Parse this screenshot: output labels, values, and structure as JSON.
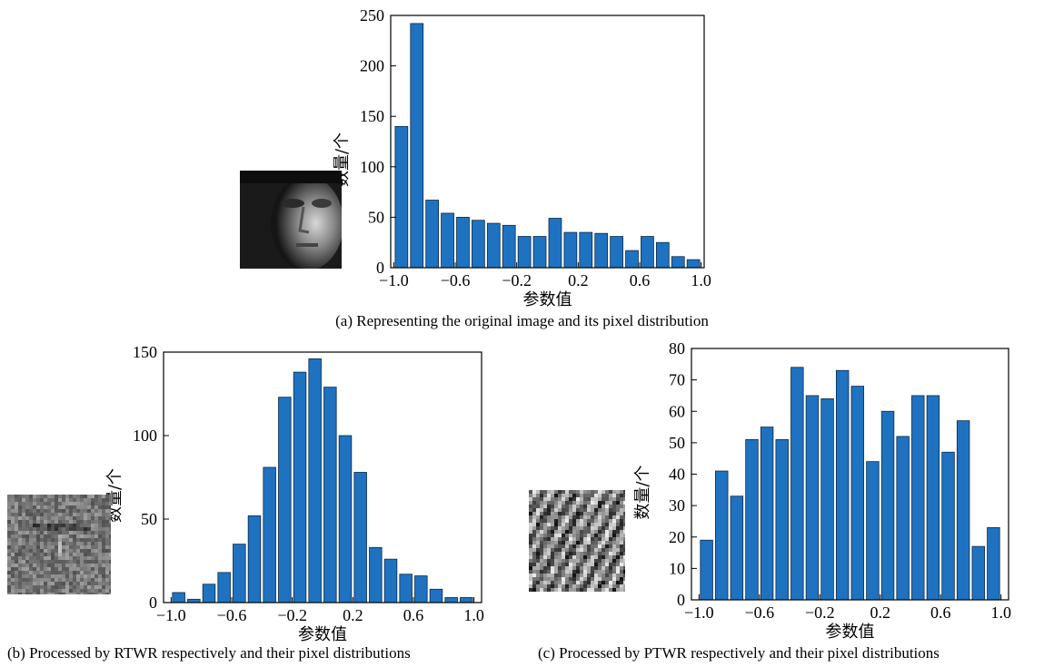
{
  "figure": {
    "captions": {
      "a": "(a) Representing the original image and its pixel distribution",
      "b": "(b) Processed by RTWR respectively and their pixel distributions",
      "c": "(c) Processed by PTWR respectively and their pixel distributions"
    }
  },
  "colors": {
    "bar_fill": "#1f72c0",
    "bar_edge": "#0b2a4a",
    "axis": "#000000"
  },
  "chart_data": [
    {
      "id": "a",
      "type": "bar",
      "title": "",
      "xlabel": "参数值",
      "ylabel": "数量/个",
      "x": [
        -0.95,
        -0.85,
        -0.75,
        -0.65,
        -0.55,
        -0.45,
        -0.35,
        -0.25,
        -0.15,
        -0.05,
        0.05,
        0.15,
        0.25,
        0.35,
        0.45,
        0.55,
        0.65,
        0.75,
        0.85,
        0.95
      ],
      "values": [
        140,
        242,
        67,
        54,
        50,
        47,
        44,
        42,
        31,
        31,
        49,
        35,
        35,
        34,
        31,
        17,
        31,
        25,
        11,
        8
      ],
      "xlim": [
        -1.02,
        1.02
      ],
      "ylim": [
        0,
        250
      ],
      "xticks": [
        -1.0,
        -0.6,
        -0.2,
        0.2,
        0.6,
        1.0
      ],
      "xtick_labels": [
        "−1.0",
        "−0.6",
        "−0.2",
        "0.2",
        "0.6",
        "1.0"
      ],
      "yticks": [
        0,
        50,
        100,
        150,
        200,
        250
      ],
      "ytick_labels": [
        "0",
        "50",
        "100",
        "150",
        "200",
        "250"
      ],
      "grid": false,
      "legend": "none"
    },
    {
      "id": "b",
      "type": "bar",
      "title": "",
      "xlabel": "参数值",
      "ylabel": "数量/个",
      "x": [
        -0.95,
        -0.85,
        -0.75,
        -0.65,
        -0.55,
        -0.45,
        -0.35,
        -0.25,
        -0.15,
        -0.05,
        0.05,
        0.15,
        0.25,
        0.35,
        0.45,
        0.55,
        0.65,
        0.75,
        0.85,
        0.95
      ],
      "values": [
        6,
        2,
        11,
        18,
        35,
        52,
        81,
        123,
        138,
        146,
        129,
        100,
        78,
        33,
        26,
        17,
        16,
        8,
        3,
        3
      ],
      "xlim": [
        -1.05,
        1.05
      ],
      "ylim": [
        0,
        150
      ],
      "xticks": [
        -1.0,
        -0.6,
        -0.2,
        0.2,
        0.6,
        1.0
      ],
      "xtick_labels": [
        "−1.0",
        "−0.6",
        "−0.2",
        "0.2",
        "0.6",
        "1.0"
      ],
      "yticks": [
        0,
        50,
        100,
        150
      ],
      "ytick_labels": [
        "0",
        "50",
        "100",
        "150"
      ],
      "grid": false,
      "legend": "none"
    },
    {
      "id": "c",
      "type": "bar",
      "title": "",
      "xlabel": "参数值",
      "ylabel": "数量/个",
      "x": [
        -0.95,
        -0.85,
        -0.75,
        -0.65,
        -0.55,
        -0.45,
        -0.35,
        -0.25,
        -0.15,
        -0.05,
        0.05,
        0.15,
        0.25,
        0.35,
        0.45,
        0.55,
        0.65,
        0.75,
        0.85,
        0.95
      ],
      "values": [
        19,
        41,
        33,
        51,
        55,
        51,
        74,
        65,
        64,
        73,
        68,
        44,
        60,
        52,
        65,
        65,
        47,
        57,
        17,
        23
      ],
      "xlim": [
        -1.05,
        1.05
      ],
      "ylim": [
        0,
        80
      ],
      "xticks": [
        -1.0,
        -0.6,
        -0.2,
        0.2,
        0.6,
        1.0
      ],
      "xtick_labels": [
        "−1.0",
        "−0.6",
        "−0.2",
        "0.2",
        "0.6",
        "1.0"
      ],
      "yticks": [
        0,
        10,
        20,
        30,
        40,
        50,
        60,
        70,
        80
      ],
      "ytick_labels": [
        "0",
        "10",
        "20",
        "30",
        "40",
        "50",
        "60",
        "70",
        "80"
      ],
      "grid": false,
      "legend": "none"
    }
  ]
}
